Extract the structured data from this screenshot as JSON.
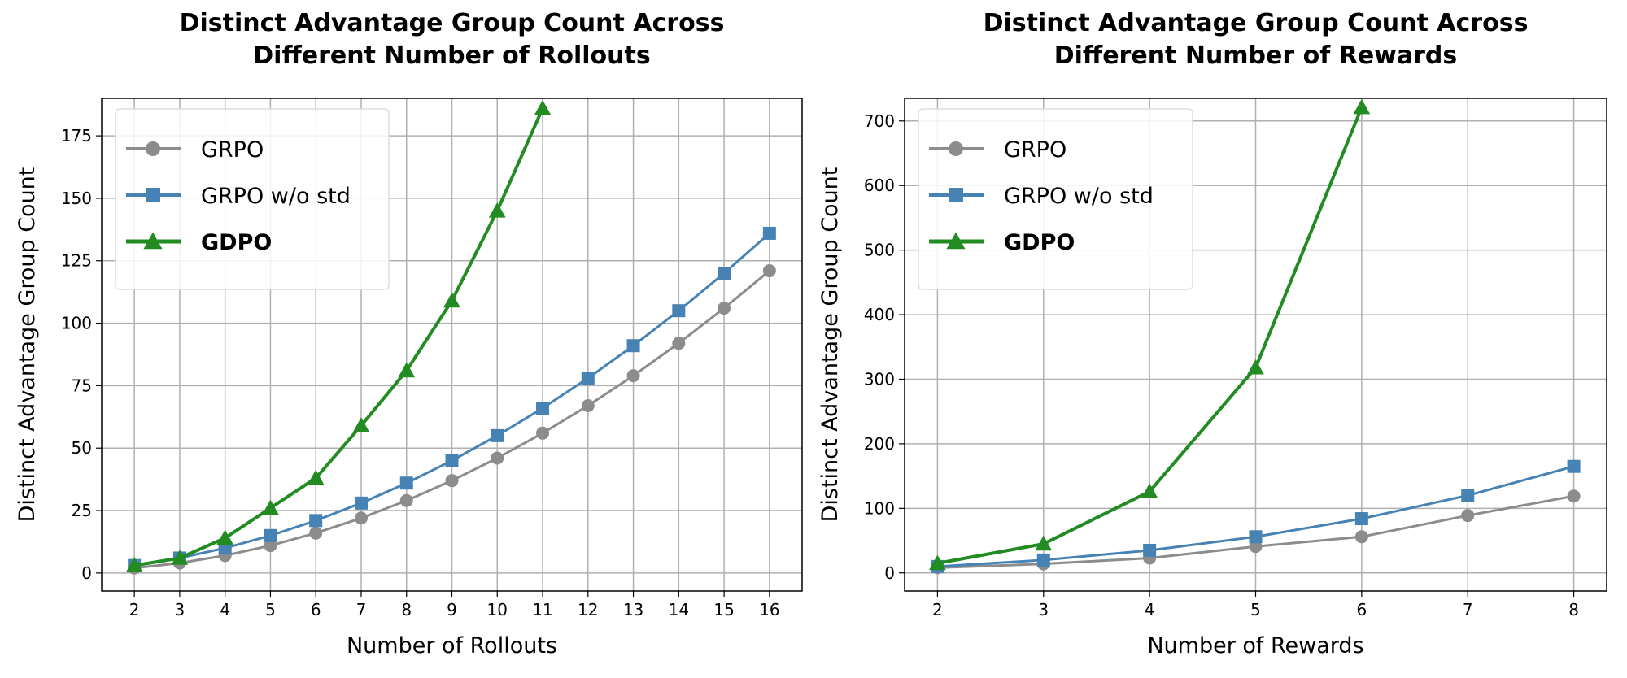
{
  "chart_data": [
    {
      "type": "line",
      "title": [
        "Distinct Advantage Group Count Across",
        "Different Number of Rollouts"
      ],
      "xlabel": "Number of Rollouts",
      "ylabel": "Distinct Advantage Group Count",
      "x": [
        2,
        3,
        4,
        5,
        6,
        7,
        8,
        9,
        10,
        11,
        12,
        13,
        14,
        15,
        16
      ],
      "xticks": [
        2,
        3,
        4,
        5,
        6,
        7,
        8,
        9,
        10,
        11,
        12,
        13,
        14,
        15,
        16
      ],
      "yticks": [
        0,
        25,
        50,
        75,
        100,
        125,
        150,
        175
      ],
      "xlim": [
        1.28,
        16.72
      ],
      "ylim": [
        -7.2,
        190
      ],
      "grid": true,
      "legend": "top-left",
      "series": [
        {
          "name": "GRPO",
          "color": "#8c8c8c",
          "marker": "circle",
          "values": [
            2,
            4,
            7,
            11,
            16,
            22,
            29,
            37,
            46,
            56,
            67,
            79,
            92,
            106,
            121
          ]
        },
        {
          "name": "GRPO w/o std",
          "color": "#4682b4",
          "marker": "square",
          "values": [
            3,
            6,
            10,
            15,
            21,
            28,
            36,
            45,
            55,
            66,
            78,
            91,
            105,
            120,
            136
          ]
        },
        {
          "name": "GDPO",
          "color": "#228b22",
          "marker": "triangle",
          "bold": true,
          "values": [
            3,
            6,
            14,
            26,
            38,
            59,
            81,
            109,
            145,
            186,
            null,
            null,
            null,
            null,
            null
          ]
        }
      ]
    },
    {
      "type": "line",
      "title": [
        "Distinct Advantage Group Count Across",
        "Different Number of Rewards"
      ],
      "xlabel": "Number of Rewards",
      "ylabel": "Distinct Advantage Group Count",
      "x": [
        2,
        3,
        4,
        5,
        6,
        7,
        8
      ],
      "xticks": [
        2,
        3,
        4,
        5,
        6,
        7,
        8
      ],
      "yticks": [
        0,
        100,
        200,
        300,
        400,
        500,
        600,
        700
      ],
      "xlim": [
        1.69,
        8.31
      ],
      "ylim": [
        -28,
        735
      ],
      "grid": true,
      "legend": "top-left",
      "series": [
        {
          "name": "GRPO",
          "color": "#8c8c8c",
          "marker": "circle",
          "values": [
            8,
            14,
            23,
            41,
            56,
            89,
            119
          ]
        },
        {
          "name": "GRPO w/o std",
          "color": "#4682b4",
          "marker": "square",
          "values": [
            10,
            20,
            35,
            56,
            84,
            120,
            165
          ]
        },
        {
          "name": "GDPO",
          "color": "#228b22",
          "marker": "triangle",
          "bold": true,
          "values": [
            15,
            45,
            126,
            318,
            721,
            null,
            null
          ]
        }
      ]
    }
  ]
}
